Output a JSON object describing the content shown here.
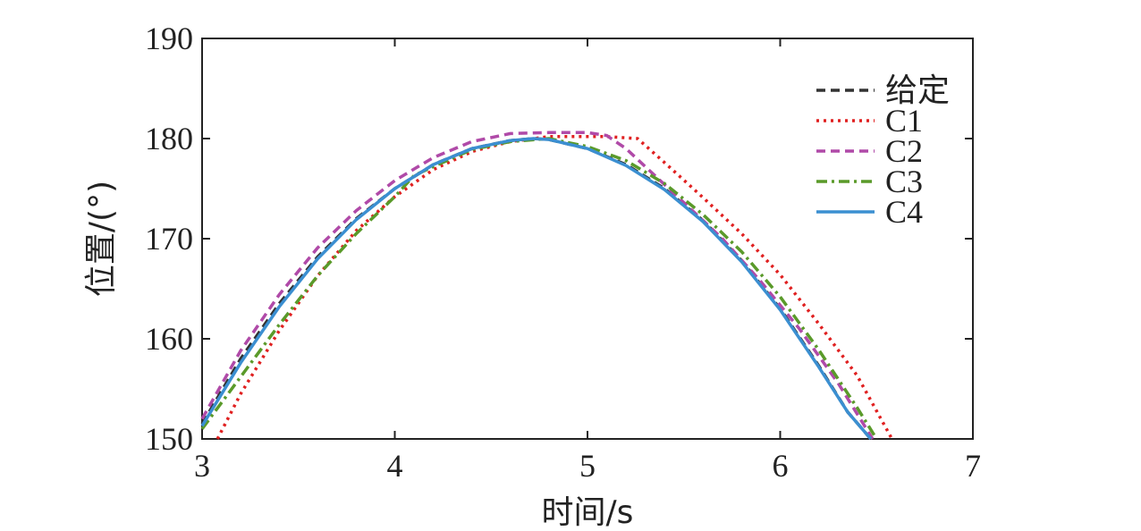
{
  "chart_data": {
    "type": "line",
    "xlabel": "时间/s",
    "ylabel": "位置/(°)",
    "xlim": [
      3,
      7
    ],
    "ylim": [
      150,
      190
    ],
    "xticks": [
      3,
      4,
      5,
      6,
      7
    ],
    "yticks": [
      150,
      160,
      170,
      180,
      190
    ],
    "grid": false,
    "legend_position": "top-right",
    "series": [
      {
        "name": "给定",
        "color": "#333333",
        "style": "dashed",
        "x": [
          3.0,
          3.2,
          3.4,
          3.6,
          3.8,
          4.0,
          4.2,
          4.4,
          4.6,
          4.72,
          4.8,
          5.0,
          5.2,
          5.4,
          5.6,
          5.8,
          6.0,
          6.2,
          6.35,
          6.47
        ],
        "y": [
          151.5,
          158.0,
          163.5,
          168.2,
          172.0,
          175.0,
          177.4,
          179.0,
          179.8,
          180.0,
          179.9,
          179.0,
          177.4,
          175.0,
          171.8,
          167.8,
          163.0,
          157.3,
          152.7,
          150.0
        ]
      },
      {
        "name": "C1",
        "color": "#e02020",
        "style": "dotted",
        "x": [
          3.08,
          3.2,
          3.4,
          3.6,
          3.8,
          4.0,
          4.2,
          4.4,
          4.6,
          4.8,
          5.0,
          5.1,
          5.26,
          5.4,
          5.6,
          5.8,
          6.0,
          6.2,
          6.4,
          6.58
        ],
        "y": [
          150.0,
          154.5,
          160.8,
          166.3,
          170.8,
          174.2,
          176.9,
          178.7,
          179.7,
          180.2,
          180.2,
          180.2,
          180.0,
          177.6,
          174.1,
          170.5,
          166.4,
          161.5,
          156.3,
          150.0
        ]
      },
      {
        "name": "C2",
        "color": "#b04aa8",
        "style": "dashed",
        "x": [
          3.0,
          3.2,
          3.4,
          3.6,
          3.8,
          4.0,
          4.2,
          4.4,
          4.6,
          4.8,
          5.0,
          5.1,
          5.2,
          5.3,
          5.5,
          5.7,
          5.9,
          6.1,
          6.3,
          6.48
        ],
        "y": [
          152.0,
          158.8,
          164.4,
          169.1,
          172.8,
          175.8,
          178.1,
          179.7,
          180.5,
          180.6,
          180.6,
          180.3,
          179.0,
          177.2,
          173.6,
          170.0,
          165.7,
          161.0,
          155.6,
          150.0
        ]
      },
      {
        "name": "C3",
        "color": "#5a9a2a",
        "style": "dashdot",
        "x": [
          3.0,
          3.2,
          3.4,
          3.6,
          3.8,
          4.0,
          4.1,
          4.2,
          4.4,
          4.6,
          4.8,
          5.0,
          5.2,
          5.4,
          5.6,
          5.8,
          6.0,
          6.2,
          6.4,
          6.5
        ],
        "y": [
          151.0,
          156.2,
          161.4,
          166.3,
          170.5,
          174.2,
          176.3,
          177.2,
          178.9,
          179.7,
          180.0,
          179.2,
          177.8,
          175.5,
          172.4,
          168.7,
          164.2,
          158.9,
          153.1,
          150.0
        ]
      },
      {
        "name": "C4",
        "color": "#3b8fd1",
        "style": "solid",
        "x": [
          3.0,
          3.2,
          3.4,
          3.6,
          3.8,
          4.0,
          4.2,
          4.4,
          4.6,
          4.72,
          4.8,
          5.0,
          5.2,
          5.4,
          5.6,
          5.8,
          6.0,
          6.2,
          6.35,
          6.47
        ],
        "y": [
          151.3,
          157.6,
          163.2,
          168.0,
          171.9,
          175.0,
          177.4,
          179.0,
          179.8,
          180.0,
          179.9,
          179.0,
          177.3,
          174.9,
          171.7,
          167.7,
          162.9,
          157.2,
          152.7,
          150.0
        ]
      }
    ]
  }
}
